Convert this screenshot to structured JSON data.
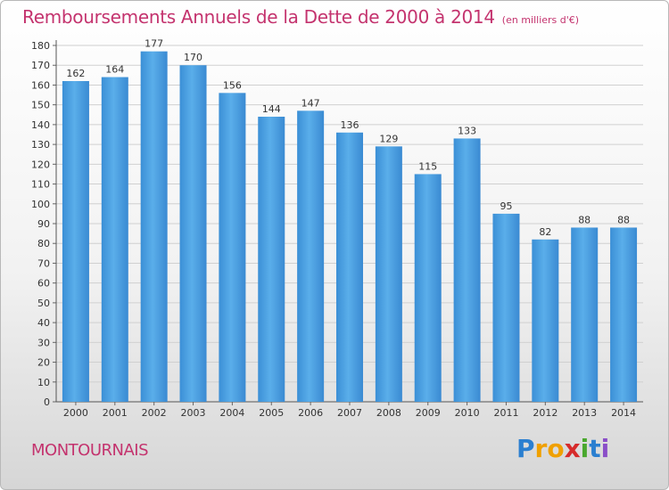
{
  "title": "Remboursements Annuels de la Dette de 2000 à 2014",
  "unit_label": "(en milliers d'€)",
  "commune": "MONTOURNAIS",
  "logo": {
    "letters": [
      "P",
      "r",
      "o",
      "x",
      "i",
      "t",
      "i"
    ],
    "colors": [
      "#2b7fd0",
      "#f0a000",
      "#f0a000",
      "#d62b2b",
      "#4aa82e",
      "#2b7fd0",
      "#8a4fc8"
    ]
  },
  "colors": {
    "bar": "#4a9fe3",
    "title": "#c4336e"
  },
  "chart_data": {
    "type": "bar",
    "categories": [
      "2000",
      "2001",
      "2002",
      "2003",
      "2004",
      "2005",
      "2006",
      "2007",
      "2008",
      "2009",
      "2010",
      "2011",
      "2012",
      "2013",
      "2014"
    ],
    "values": [
      162,
      164,
      177,
      170,
      156,
      144,
      147,
      136,
      129,
      115,
      133,
      95,
      82,
      88,
      88
    ],
    "ylim": [
      0,
      180
    ],
    "yticks": [
      0,
      10,
      20,
      30,
      40,
      50,
      60,
      70,
      80,
      90,
      100,
      110,
      120,
      130,
      140,
      150,
      160,
      170,
      180
    ],
    "grid": true,
    "data_labels": true
  }
}
